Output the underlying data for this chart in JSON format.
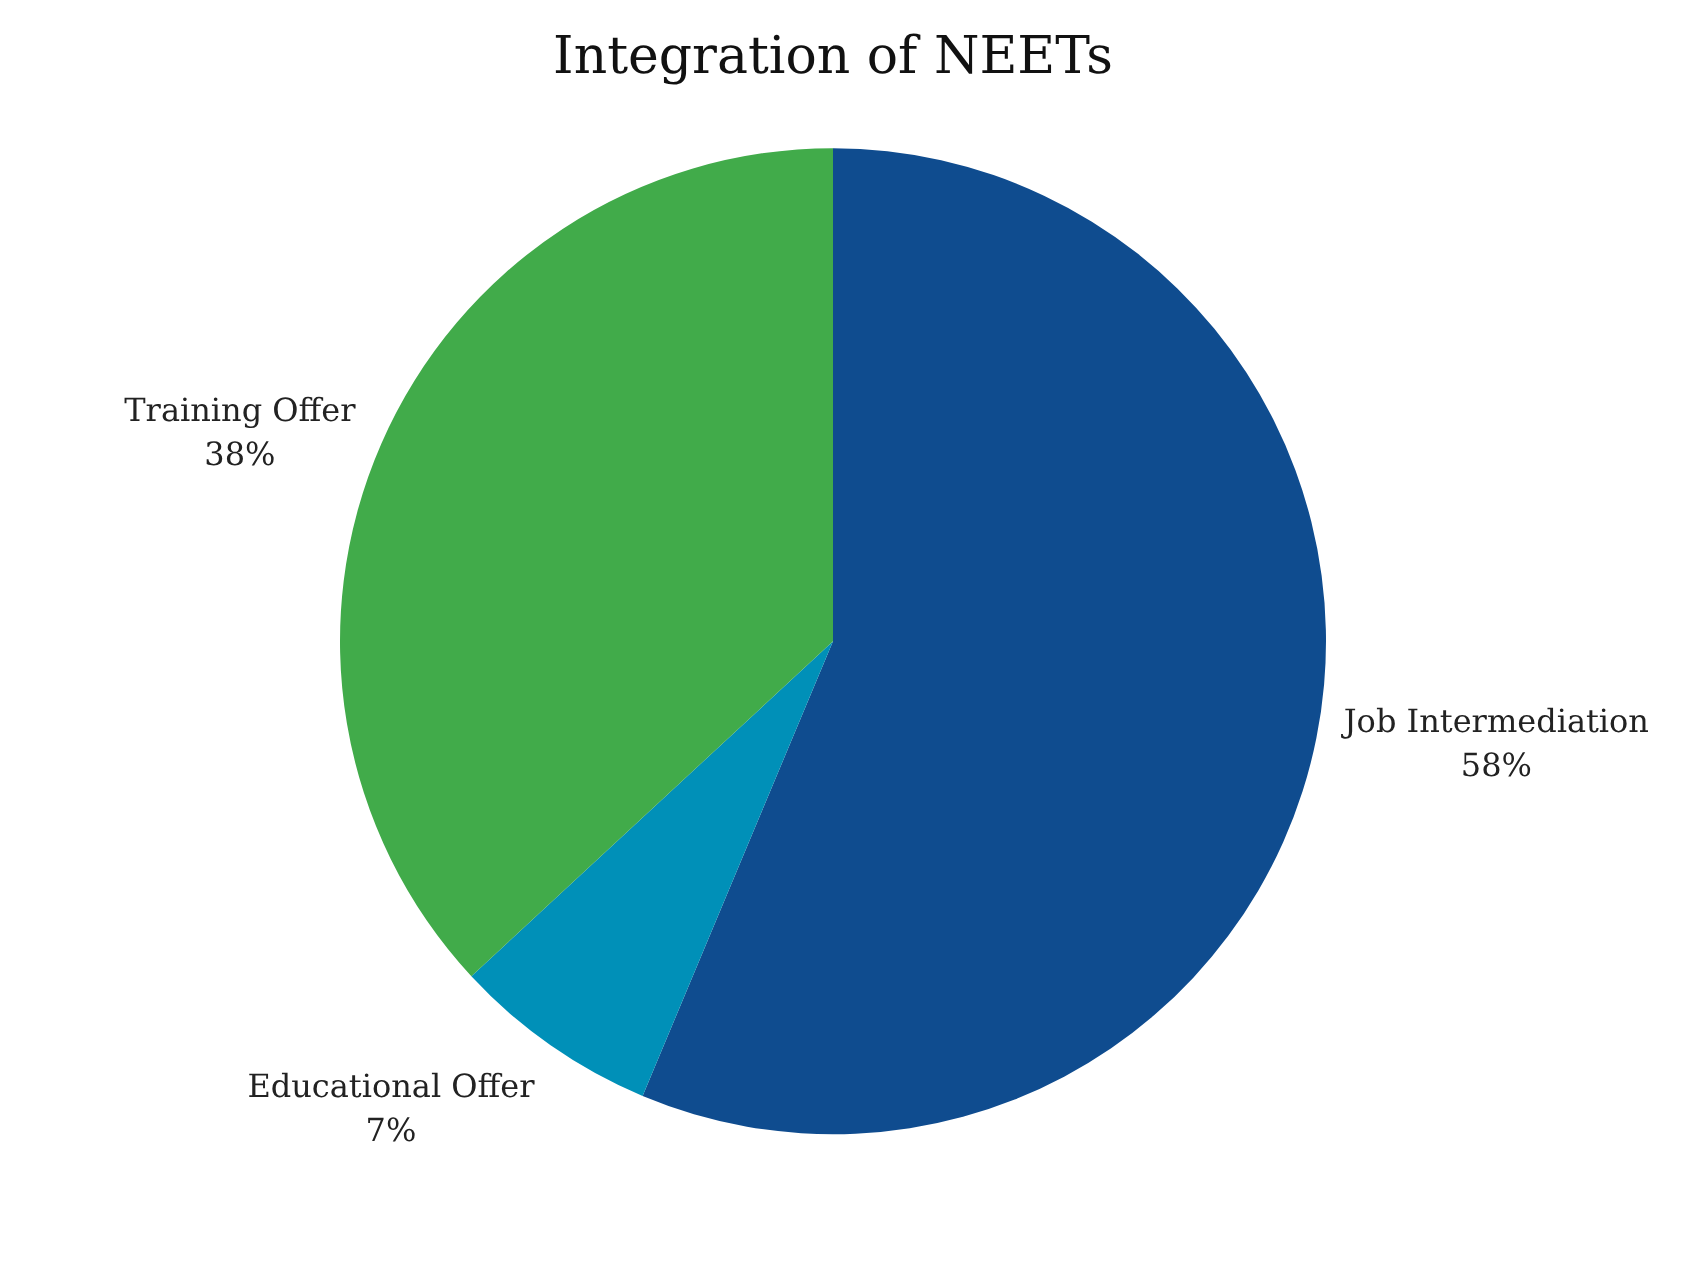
{
  "chart_data": {
    "type": "pie",
    "title": "Integration of NEETs",
    "categories": [
      "Job Intermediation",
      "Educational Offer",
      "Training Offer"
    ],
    "values": [
      58,
      7,
      38
    ],
    "colors": [
      "#0f4c8f",
      "#0090b8",
      "#41ab4a"
    ],
    "value_labels": [
      "58%",
      "7%",
      "38%"
    ],
    "legend": false
  }
}
